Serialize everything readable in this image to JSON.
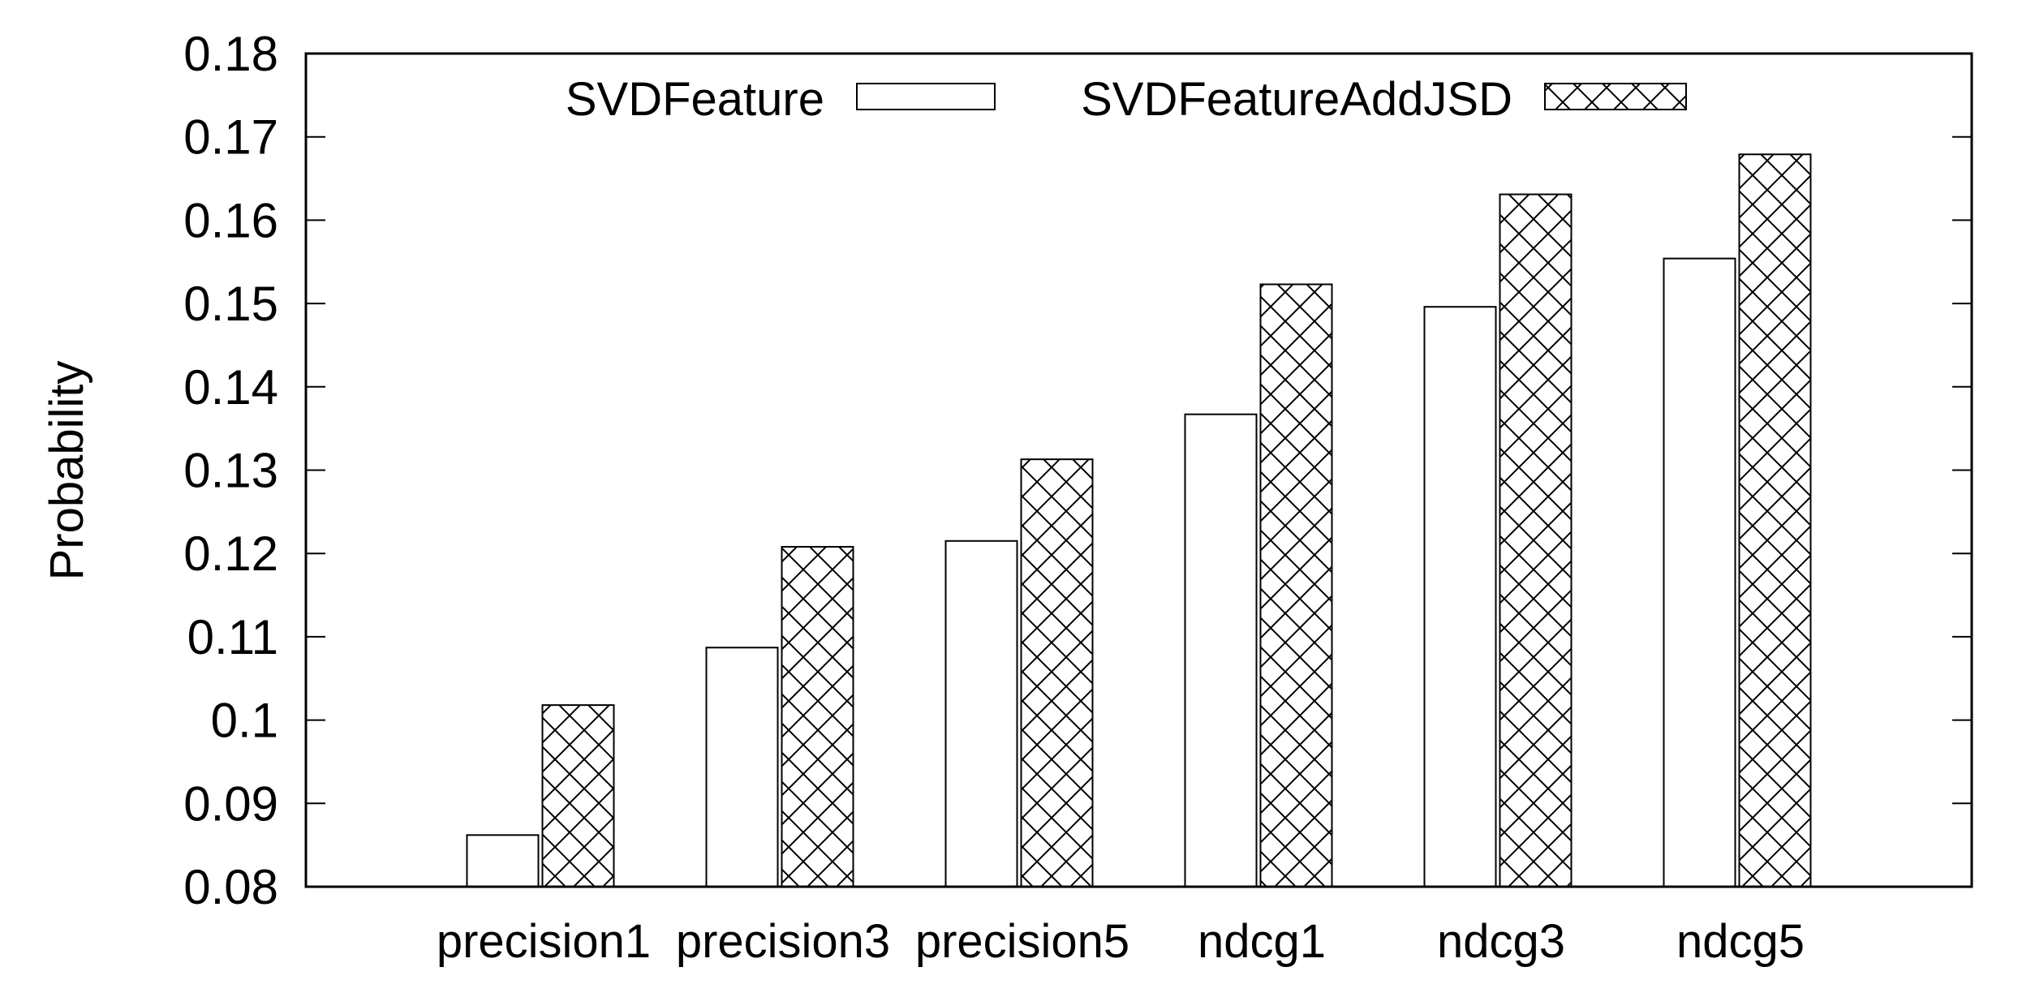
{
  "chart_data": {
    "type": "bar",
    "title": "",
    "xlabel": "",
    "ylabel": "Probability",
    "ylim": [
      0.08,
      0.18
    ],
    "yticks": [
      "0.08",
      "0.09",
      "0.1",
      "0.11",
      "0.12",
      "0.13",
      "0.14",
      "0.15",
      "0.16",
      "0.17",
      "0.18"
    ],
    "categories": [
      "precision1",
      "precision3",
      "precision5",
      "ndcg1",
      "ndcg3",
      "ndcg5"
    ],
    "series": [
      {
        "name": "SVDFeature",
        "fill": "#ffffff",
        "pattern": "none",
        "values": [
          0.0862,
          0.1087,
          0.1215,
          0.1367,
          0.1496,
          0.1554
        ]
      },
      {
        "name": "SVDFeatureAddJSD",
        "fill": "#ffffff",
        "pattern": "crosshatch",
        "values": [
          0.1018,
          0.1208,
          0.1313,
          0.1523,
          0.1631,
          0.1679
        ]
      }
    ],
    "legend": "top-center",
    "grid": false
  }
}
